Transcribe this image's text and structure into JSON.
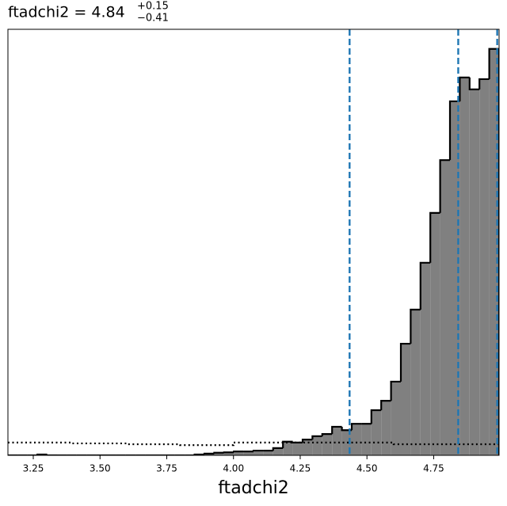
{
  "chart_data": {
    "type": "histogram",
    "title": "ftadchi2 = 4.84",
    "title_superscript": "+0.15",
    "title_subscript": "−0.41",
    "x_label": "ftadchi2",
    "bins": [
      3.155,
      3.1918,
      3.2286,
      3.2654,
      3.3022,
      3.339,
      3.3758,
      3.4126,
      3.4494,
      3.4862,
      3.523,
      3.5598,
      3.5966,
      3.6334,
      3.6702,
      3.707,
      3.7438,
      3.7806,
      3.8174,
      3.8542,
      3.891,
      3.9278,
      3.9646,
      4.0014,
      4.0382,
      4.075,
      4.1118,
      4.1486,
      4.1854,
      4.2222,
      4.259,
      4.2958,
      4.3326,
      4.3694,
      4.4062,
      4.443,
      4.4798,
      4.5166,
      4.5534,
      4.5902,
      4.627,
      4.6638,
      4.7006,
      4.7374,
      4.7742,
      4.811,
      4.8478,
      4.8846,
      4.9214,
      4.9582,
      4.995
    ],
    "counts": [
      0,
      0,
      0,
      0.2,
      0,
      0,
      0,
      0,
      0,
      0,
      0,
      0,
      0,
      0,
      0,
      0,
      0,
      0,
      0,
      0.2,
      0.4,
      0.6,
      0.7,
      0.9,
      0.9,
      1.1,
      1.1,
      1.7,
      3.2,
      3.0,
      3.7,
      4.5,
      5.0,
      6.7,
      5.9,
      7.4,
      7.4,
      10.6,
      12.8,
      17.3,
      26.2,
      34.2,
      45.2,
      56.9,
      69.3,
      83.1,
      88.7,
      85.9,
      88.3,
      95.4
    ],
    "color": "#808080",
    "edgecolor": "#000000",
    "prior": {
      "x": [
        3.155,
        3.39,
        3.39,
        3.6,
        3.6,
        3.8,
        3.8,
        4.0,
        4.0,
        4.6,
        4.6,
        4.995
      ],
      "values": [
        3.0,
        3.0,
        2.8,
        2.8,
        2.6,
        2.6,
        2.4,
        2.4,
        3.0,
        3.0,
        2.6,
        2.6
      ],
      "color": "#000000"
    },
    "vlines": {
      "values": [
        4.435,
        4.842,
        4.988
      ],
      "color": "#1f77b4"
    },
    "xlim": [
      3.155,
      4.995
    ],
    "ylim": [
      0,
      100
    ],
    "xticks": [
      3.25,
      {
        "value": 3.5,
        "label": "3.50"
      },
      3.75,
      {
        "value": 4,
        "label": "4.00"
      },
      4.25,
      {
        "value": 4.5,
        "label": "4.50"
      },
      4.75
    ]
  }
}
